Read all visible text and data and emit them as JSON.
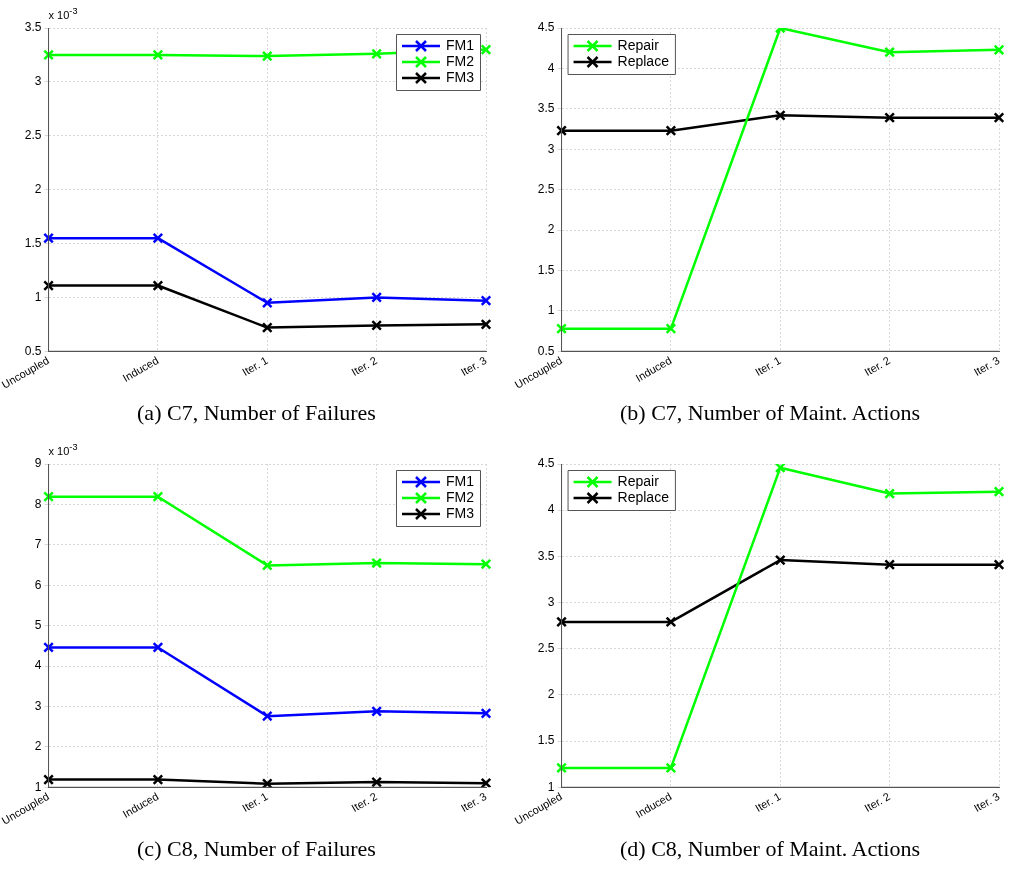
{
  "chart_data": [
    {
      "type": "line",
      "title": "(a) C7, Number of Failures",
      "categories": [
        "Uncoupled",
        "Induced",
        "Iter. 1",
        "Iter. 2",
        "Iter. 3"
      ],
      "annotations": [
        "x 10$^{-3}$"
      ],
      "series": [
        {
          "name": "FM1",
          "color": "#0000ff",
          "values": [
            1.55,
            1.55,
            0.95,
            1.0,
            0.97
          ]
        },
        {
          "name": "FM2",
          "color": "#00ff00",
          "values": [
            3.25,
            3.25,
            3.24,
            3.26,
            3.3
          ]
        },
        {
          "name": "FM3",
          "color": "#000000",
          "values": [
            1.11,
            1.11,
            0.72,
            0.74,
            0.75
          ]
        }
      ],
      "ylim": [
        0.5,
        3.5
      ],
      "yticks": [
        0.5,
        1,
        1.5,
        2,
        2.5,
        3,
        3.5
      ],
      "grid": true,
      "legend": "top right",
      "marker": "cross",
      "line_style": "solid"
    },
    {
      "type": "line",
      "title": "(b) C7, Number of Maint. Actions",
      "categories": [
        "Uncoupled",
        "Induced",
        "Iter. 1",
        "Iter. 2",
        "Iter. 3"
      ],
      "series": [
        {
          "name": "Repair",
          "color": "#00ff00",
          "values": [
            0.78,
            0.78,
            4.5,
            4.2,
            4.23
          ]
        },
        {
          "name": "Replace",
          "color": "#000000",
          "values": [
            3.23,
            3.23,
            3.42,
            3.39,
            3.39
          ]
        }
      ],
      "ylim": [
        0.5,
        4.5
      ],
      "yticks": [
        0.5,
        1,
        1.5,
        2,
        2.5,
        3,
        3.5,
        4,
        4.5
      ],
      "grid": true,
      "legend": "top left",
      "marker": "cross",
      "line_style": "solid"
    },
    {
      "type": "line",
      "title": "(c) C8, Number of Failures",
      "categories": [
        "Uncoupled",
        "Induced",
        "Iter. 1",
        "Iter. 2",
        "Iter. 3"
      ],
      "annotations": [
        "x 10$^{-3}$"
      ],
      "series": [
        {
          "name": "FM1",
          "color": "#0000ff",
          "values": [
            4.46,
            4.46,
            2.76,
            2.88,
            2.83
          ]
        },
        {
          "name": "FM2",
          "color": "#00ff00",
          "values": [
            8.19,
            8.19,
            6.49,
            6.55,
            6.52
          ]
        },
        {
          "name": "FM3",
          "color": "#000000",
          "values": [
            1.19,
            1.19,
            1.09,
            1.13,
            1.1
          ]
        }
      ],
      "ylim": [
        1,
        9
      ],
      "yticks": [
        1,
        2,
        3,
        4,
        5,
        6,
        7,
        8,
        9
      ],
      "grid": true,
      "legend": "top right",
      "marker": "cross",
      "line_style": "solid"
    },
    {
      "type": "line",
      "title": "(d) C8, Number of Maint. Actions",
      "categories": [
        "Uncoupled",
        "Induced",
        "Iter. 1",
        "Iter. 2",
        "Iter. 3"
      ],
      "series": [
        {
          "name": "Repair",
          "color": "#00ff00",
          "values": [
            1.21,
            1.21,
            4.46,
            4.18,
            4.2
          ]
        },
        {
          "name": "Replace",
          "color": "#000000",
          "values": [
            2.79,
            2.79,
            3.46,
            3.41,
            3.41
          ]
        }
      ],
      "ylim": [
        1,
        4.5
      ],
      "yticks": [
        1,
        1.5,
        2,
        2.5,
        3,
        3.5,
        4,
        4.5
      ],
      "grid": true,
      "legend": "top left",
      "marker": "cross",
      "line_style": "solid"
    }
  ]
}
